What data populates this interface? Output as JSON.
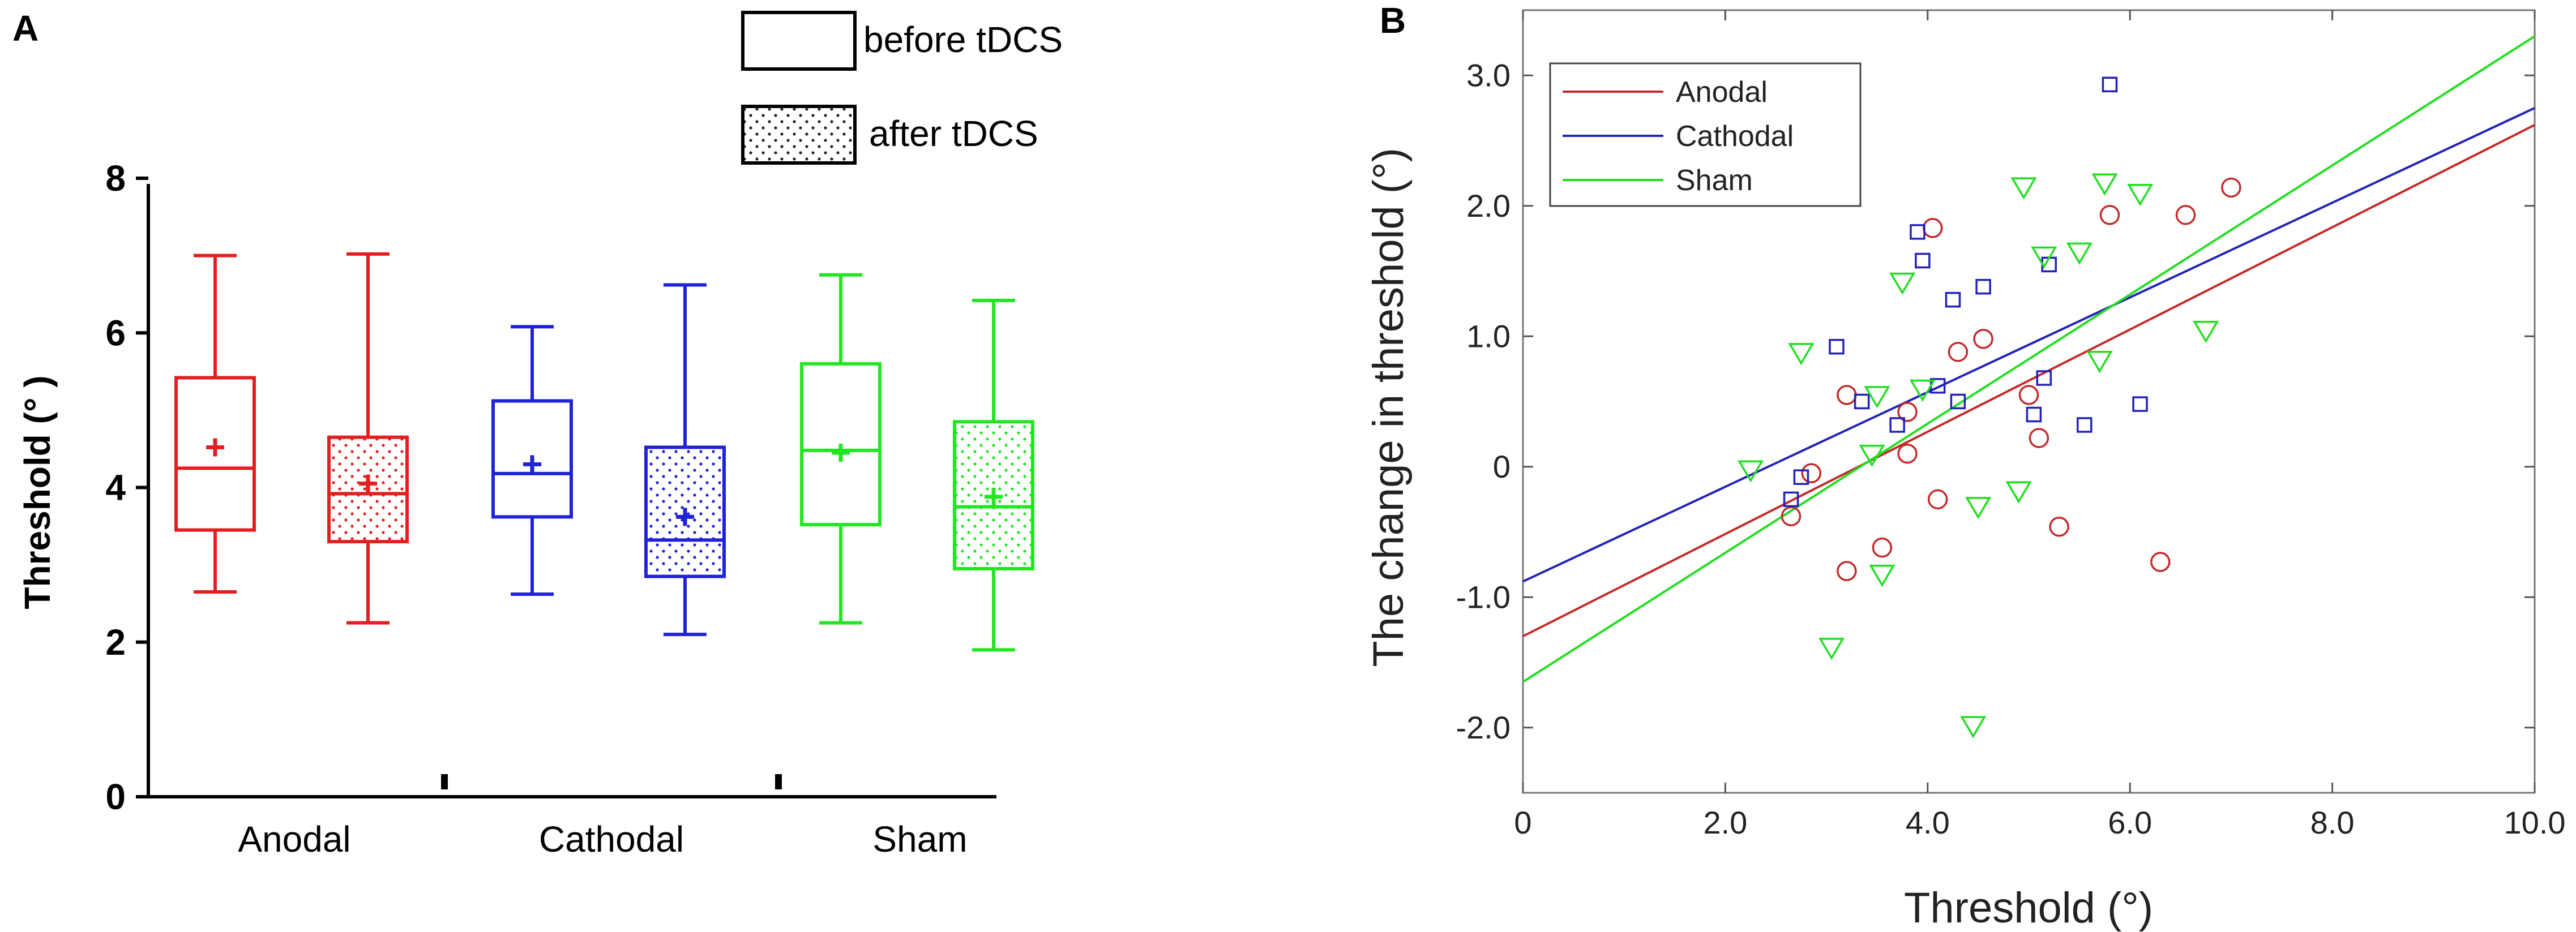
{
  "chart_data": [
    {
      "panel": "A",
      "type": "box",
      "title": "",
      "ylabel": "Threshold (° )",
      "ylim": [
        0,
        8
      ],
      "yticks": [
        "0",
        "2",
        "4",
        "6",
        "8"
      ],
      "categories": [
        "Anodal",
        "Cathodal",
        "Sham"
      ],
      "legend": {
        "position": "top-right",
        "entries": [
          "before tDCS",
          "after tDCS"
        ]
      },
      "colors": {
        "Anodal": "#e41e1e",
        "Cathodal": "#1f22d6",
        "Sham": "#22e622"
      },
      "boxes": [
        {
          "group": "Anodal",
          "condition": "before tDCS",
          "min": 2.65,
          "q1": 3.45,
          "median": 4.25,
          "q3": 5.42,
          "max": 7.0,
          "mean": 4.52
        },
        {
          "group": "Anodal",
          "condition": "after tDCS",
          "min": 2.25,
          "q1": 3.3,
          "median": 3.92,
          "q3": 4.65,
          "max": 7.02,
          "mean": 4.05
        },
        {
          "group": "Cathodal",
          "condition": "before tDCS",
          "min": 2.62,
          "q1": 3.62,
          "median": 4.18,
          "q3": 5.12,
          "max": 6.08,
          "mean": 4.3
        },
        {
          "group": "Cathodal",
          "condition": "after tDCS",
          "min": 2.1,
          "q1": 2.85,
          "median": 3.32,
          "q3": 4.52,
          "max": 6.62,
          "mean": 3.62
        },
        {
          "group": "Sham",
          "condition": "before tDCS",
          "min": 2.25,
          "q1": 3.52,
          "median": 4.48,
          "q3": 5.6,
          "max": 6.75,
          "mean": 4.45
        },
        {
          "group": "Sham",
          "condition": "after tDCS",
          "min": 1.9,
          "q1": 2.95,
          "median": 3.75,
          "q3": 4.85,
          "max": 6.42,
          "mean": 3.88
        }
      ]
    },
    {
      "panel": "B",
      "type": "scatter",
      "title": "",
      "xlabel": "Threshold (°)",
      "ylabel": "The change in threshold (°)",
      "xlim": [
        0,
        10
      ],
      "ylim": [
        -2.5,
        3.5
      ],
      "xticks": [
        "0",
        "2.0",
        "4.0",
        "6.0",
        "8.0",
        "10.0"
      ],
      "yticks": [
        "-2.0",
        "-1.0",
        "0",
        "1.0",
        "2.0",
        "3.0"
      ],
      "legend": {
        "position": "top-left"
      },
      "series": [
        {
          "name": "Anodal",
          "color": "#c42a2a",
          "marker": "circle",
          "fit": {
            "intercept": -1.3,
            "slope": 0.392
          },
          "points": [
            [
              2.65,
              -0.38
            ],
            [
              2.85,
              -0.05
            ],
            [
              3.2,
              0.55
            ],
            [
              3.2,
              -0.8
            ],
            [
              3.55,
              -0.62
            ],
            [
              3.8,
              0.1
            ],
            [
              3.8,
              0.42
            ],
            [
              4.05,
              1.83
            ],
            [
              4.1,
              -0.25
            ],
            [
              4.3,
              0.88
            ],
            [
              4.55,
              0.98
            ],
            [
              5.0,
              0.55
            ],
            [
              5.1,
              0.22
            ],
            [
              5.3,
              -0.46
            ],
            [
              5.8,
              1.93
            ],
            [
              6.3,
              -0.73
            ],
            [
              6.55,
              1.93
            ],
            [
              7.0,
              2.14
            ]
          ]
        },
        {
          "name": "Cathodal",
          "color": "#2222b8",
          "marker": "square",
          "fit": {
            "intercept": -0.88,
            "slope": 0.363
          },
          "points": [
            [
              2.65,
              -0.25
            ],
            [
              2.75,
              -0.08
            ],
            [
              3.1,
              0.92
            ],
            [
              3.35,
              0.5
            ],
            [
              3.7,
              0.32
            ],
            [
              3.9,
              1.8
            ],
            [
              3.95,
              1.58
            ],
            [
              4.1,
              0.62
            ],
            [
              4.25,
              1.28
            ],
            [
              4.3,
              0.5
            ],
            [
              4.55,
              1.38
            ],
            [
              5.05,
              0.4
            ],
            [
              5.15,
              0.68
            ],
            [
              5.2,
              1.55
            ],
            [
              5.55,
              0.32
            ],
            [
              5.8,
              2.93
            ],
            [
              6.1,
              0.48
            ]
          ]
        },
        {
          "name": "Sham",
          "color": "#22dd22",
          "marker": "triangle",
          "fit": {
            "intercept": -1.65,
            "slope": 0.495
          },
          "points": [
            [
              2.25,
              -0.02
            ],
            [
              2.75,
              0.88
            ],
            [
              3.05,
              -1.38
            ],
            [
              3.45,
              0.1
            ],
            [
              3.5,
              0.55
            ],
            [
              3.55,
              -0.82
            ],
            [
              3.75,
              1.42
            ],
            [
              3.95,
              0.6
            ],
            [
              4.45,
              -1.98
            ],
            [
              4.5,
              -0.3
            ],
            [
              4.9,
              -0.18
            ],
            [
              4.95,
              2.15
            ],
            [
              5.15,
              1.62
            ],
            [
              5.5,
              1.65
            ],
            [
              5.7,
              0.82
            ],
            [
              5.75,
              2.18
            ],
            [
              6.1,
              2.1
            ],
            [
              6.75,
              1.05
            ]
          ]
        }
      ]
    }
  ]
}
